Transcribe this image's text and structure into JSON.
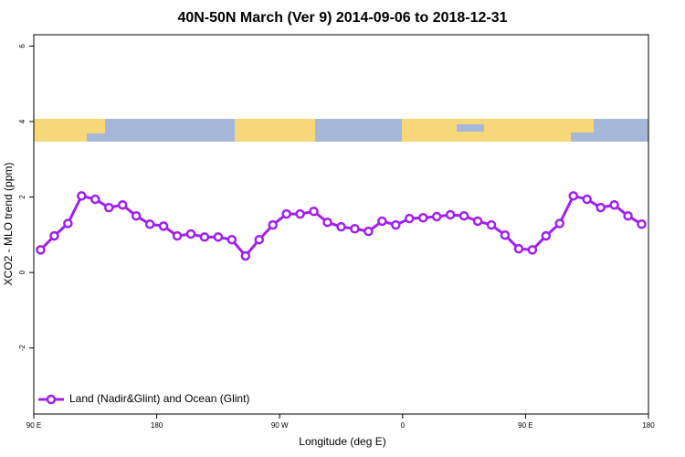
{
  "chart_data": {
    "type": "line",
    "title": "40N-50N March (Ver 9)   2014-09-06 to 2018-12-31",
    "x_label": "Longitude (deg E)",
    "y_label": "XCO2 - MLO trend (ppm)",
    "x": [
      95,
      105,
      115,
      125,
      135,
      145,
      155,
      165,
      175,
      185,
      195,
      205,
      215,
      225,
      235,
      245,
      255,
      265,
      275,
      285,
      295,
      305,
      315,
      325,
      335,
      345,
      355,
      365,
      375,
      385,
      395,
      405,
      415,
      425,
      435,
      445,
      455,
      465,
      475,
      485,
      495,
      505,
      515,
      525,
      535
    ],
    "series": [
      {
        "name": "Land (Nadir&Glint) and Ocean (Glint)",
        "color": "#a020f0",
        "values": [
          0.6,
          0.97,
          1.3,
          2.03,
          1.94,
          1.72,
          1.79,
          1.5,
          1.28,
          1.23,
          0.97,
          1.02,
          0.94,
          0.94,
          0.87,
          0.44,
          0.87,
          1.26,
          1.55,
          1.55,
          1.62,
          1.33,
          1.21,
          1.16,
          1.09,
          1.36,
          1.26,
          1.43,
          1.45,
          1.48,
          1.53,
          1.5,
          1.36,
          1.26,
          0.99,
          0.63,
          0.6,
          0.97,
          1.3,
          2.03,
          1.94,
          1.72,
          1.79,
          1.5,
          1.28
        ]
      }
    ],
    "xlim": [
      90,
      540
    ],
    "xticks": [
      {
        "value": 90,
        "label": "90 E"
      },
      180,
      {
        "value": 270,
        "label": "90 W"
      },
      {
        "value": 360,
        "label": "0"
      },
      {
        "value": 450,
        "label": "90 E"
      },
      {
        "value": 540,
        "label": "180"
      }
    ],
    "ylim": [
      -3.75,
      6.3
    ],
    "yticks": [
      -2,
      0,
      2,
      4,
      6
    ],
    "legend": "bottomleft"
  }
}
